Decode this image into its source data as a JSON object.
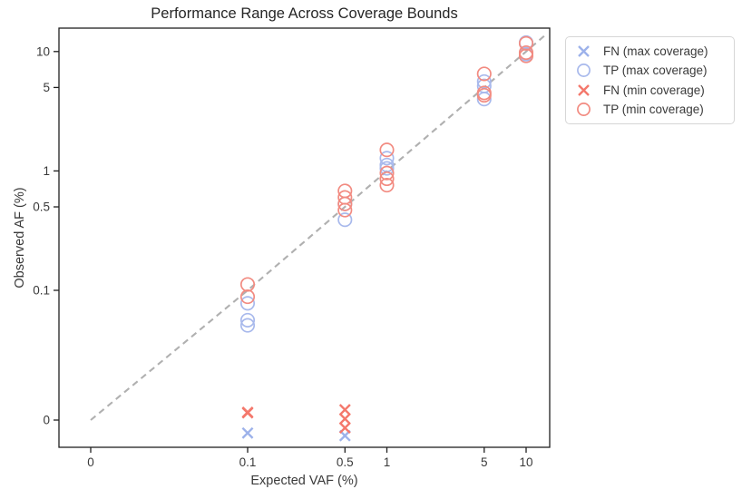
{
  "chart_data": {
    "type": "scatter",
    "title": "Performance Range Across Coverage Bounds",
    "xlabel": "Expected VAF (%)",
    "ylabel": "Observed AF (%)",
    "x_scale": "symlog",
    "y_scale": "symlog",
    "linthresh": 0.1,
    "grid": false,
    "legend_position": "outside-right-top",
    "xlim": [
      -0.02,
      14.8
    ],
    "ylim": [
      -0.021,
      15.7
    ],
    "x_ticks": [
      {
        "label": "0",
        "value": 0
      },
      {
        "label": "0.1",
        "value": 0.1
      },
      {
        "label": "0.5",
        "value": 0.5
      },
      {
        "label": "1",
        "value": 1
      },
      {
        "label": "5",
        "value": 5
      },
      {
        "label": "10",
        "value": 10
      }
    ],
    "y_ticks": [
      {
        "label": "10",
        "value": 10
      },
      {
        "label": "5",
        "value": 5
      },
      {
        "label": "1",
        "value": 1
      },
      {
        "label": "0.5",
        "value": 0.5
      },
      {
        "label": "0.1",
        "value": 0.1
      },
      {
        "label": "0",
        "value": 0
      }
    ],
    "identity_line": {
      "style": "dashed",
      "color": "#b0b0b0",
      "from": 0,
      "to": 13.5
    },
    "series": [
      {
        "name": "FN (max coverage)",
        "marker": "x",
        "color": "#9db2ea",
        "points": [
          [
            0.1,
            -0.01
          ],
          [
            0.5,
            -0.012
          ]
        ]
      },
      {
        "name": "TP (max coverage)",
        "marker": "o",
        "color": "#a8b9ec",
        "points": [
          [
            0.1,
            0.09
          ],
          [
            0.1,
            0.077
          ],
          [
            0.1,
            0.073
          ],
          [
            0.5,
            0.53
          ],
          [
            0.5,
            0.39
          ],
          [
            1,
            1.28
          ],
          [
            1,
            1.12
          ],
          [
            1,
            1.05
          ],
          [
            5,
            5.6
          ],
          [
            5,
            5.15
          ],
          [
            5,
            4.0
          ],
          [
            10,
            11.9
          ],
          [
            10,
            9.5
          ]
        ]
      },
      {
        "name": "FN (min coverage)",
        "marker": "x",
        "color": "#f4786c",
        "points": [
          [
            0.1,
            0.006
          ],
          [
            0.1,
            0.0055
          ],
          [
            0.5,
            0.008
          ],
          [
            0.5,
            0.001
          ],
          [
            0.5,
            -0.006
          ]
        ]
      },
      {
        "name": "TP (min coverage)",
        "marker": "o",
        "color": "#f28b81",
        "points": [
          [
            0.1,
            0.112
          ],
          [
            0.1,
            0.095
          ],
          [
            0.5,
            0.68
          ],
          [
            0.5,
            0.6
          ],
          [
            0.5,
            0.53
          ],
          [
            0.5,
            0.47
          ],
          [
            1,
            1.5
          ],
          [
            1,
            0.96
          ],
          [
            1,
            0.86
          ],
          [
            1,
            0.76
          ],
          [
            5,
            6.5
          ],
          [
            5,
            4.5
          ],
          [
            5,
            4.3
          ],
          [
            10,
            11.7
          ],
          [
            10,
            9.8
          ],
          [
            10,
            9.2
          ]
        ]
      }
    ]
  }
}
